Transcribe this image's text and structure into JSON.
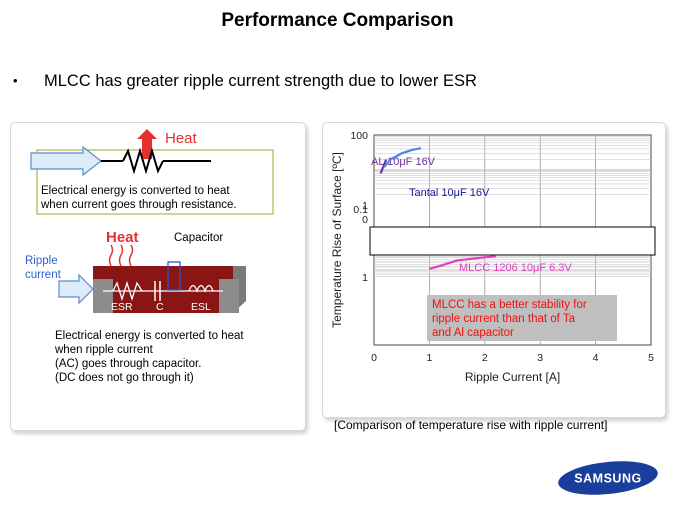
{
  "slide": {
    "title": "Performance Comparison",
    "bullet": "MLCC has greater ripple current strength due to lower ESR",
    "bullet_marker": "•"
  },
  "left_panel": {
    "heat_label_top": "Heat",
    "resistor_text_line1": "Electrical energy is converted to heat",
    "resistor_text_line2": "when current goes through resistance.",
    "heat_label_cap": "Heat",
    "capacitor_label": "Capacitor",
    "ripple_label_line1": "Ripple",
    "ripple_label_line2": "current",
    "esr_label": "ESR",
    "c_label": "C",
    "esl_label": "ESL",
    "cap_text_line1": "Electrical energy is converted to heat",
    "cap_text_line2": "when ripple current",
    "cap_text_line3": "(AC) goes through capacitor.",
    "cap_text_line4": "(DC does not go through it)"
  },
  "chart_data": {
    "type": "line",
    "ylabel": "Temperature Rise of Surface [ºC]",
    "xlabel": "Ripple Current [A]",
    "x_ticks": [
      "0",
      "1",
      "2",
      "3",
      "4",
      "5"
    ],
    "y_ticks_upper": [
      "100",
      "1",
      "0"
    ],
    "y_ticks_lower": [
      "1",
      "0.1"
    ],
    "xlim": [
      0,
      5
    ],
    "series": [
      {
        "name": "AL 10μF 16V",
        "color": "#7030a0",
        "x": [
          0.12,
          0.22
        ],
        "y": [
          8,
          20
        ]
      },
      {
        "name": "Tantal 10μF 16V",
        "color": "#4a86e8",
        "x": [
          0.18,
          0.3,
          0.5,
          0.7,
          0.85
        ],
        "y": [
          12,
          20,
          30,
          38,
          42
        ]
      },
      {
        "name": "MLCC 1206 10μF 6.3V",
        "color": "#e040c0",
        "x": [
          1.0,
          1.2,
          1.5,
          2.0,
          2.2
        ],
        "y": [
          1.6,
          1.9,
          2.6,
          3.1,
          3.3
        ]
      }
    ],
    "annotation_line1": "MLCC has a better stability for",
    "annotation_line2": "ripple current than that of Ta",
    "annotation_line3": "and Al capacitor"
  },
  "caption": "[Comparison of temperature rise with ripple current]",
  "logo_text": "SAMSUNG",
  "colors": {
    "heat_red": "#e53030",
    "ripple_blue": "#2a5fd0",
    "mlcc_magenta": "#e040c0",
    "annotation_bg": "#bfbfbf",
    "annotation_text": "#ee1111"
  }
}
